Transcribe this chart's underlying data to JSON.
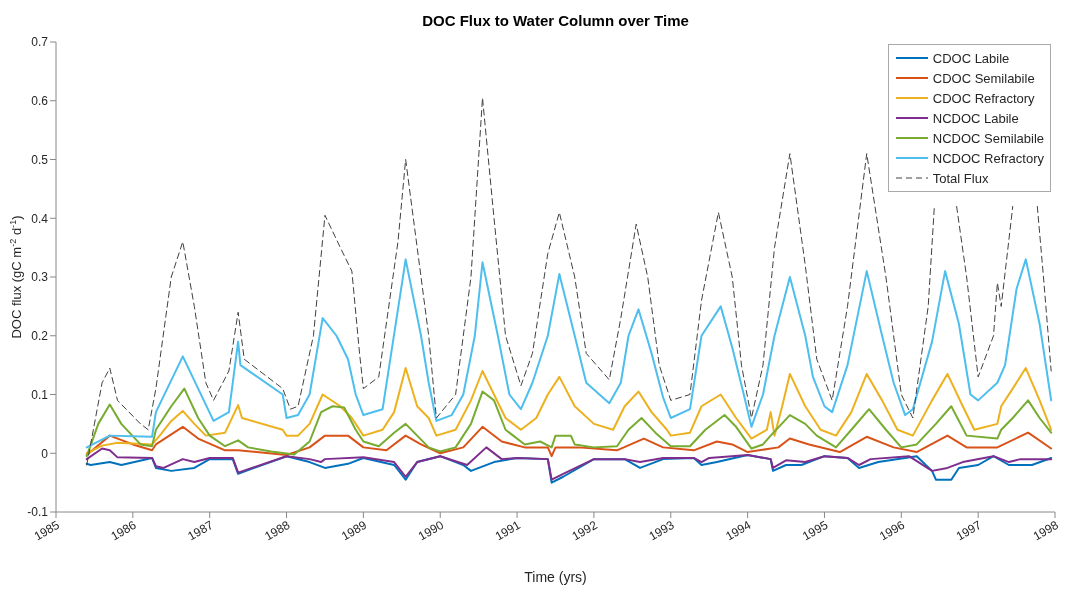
{
  "chart_data": {
    "type": "line",
    "title": "DOC Flux to Water Column over Time",
    "xlabel": "Time (yrs)",
    "ylabel": "DOC flux (gC m$^{-2}$ d$^{-1}$)",
    "xlim": [
      1985,
      1998
    ],
    "xticks": [
      1985,
      1986,
      1987,
      1988,
      1989,
      1990,
      1991,
      1992,
      1993,
      1994,
      1995,
      1996,
      1997,
      1998
    ],
    "ylim": [
      -0.1,
      0.7
    ],
    "yticks": [
      -0.1,
      0,
      0.1,
      0.2,
      0.3,
      0.4,
      0.5,
      0.6,
      0.7
    ],
    "legend": "top right",
    "line_style": "solid",
    "series": [
      {
        "name": "CDOC Labile",
        "color": "#0072bd",
        "x": [
          1985.4,
          1985.45,
          1985.7,
          1985.85,
          1986.25,
          1986.3,
          1986.5,
          1986.8,
          1987.0,
          1987.3,
          1987.37,
          1988.0,
          1988.3,
          1988.5,
          1988.8,
          1989.0,
          1989.4,
          1989.55,
          1989.7,
          1990.0,
          1990.3,
          1990.4,
          1990.7,
          1991.0,
          1991.4,
          1991.45,
          1991.6,
          1992.0,
          1992.4,
          1992.6,
          1992.9,
          1993.3,
          1993.4,
          1993.6,
          1994.0,
          1994.3,
          1994.33,
          1994.5,
          1994.7,
          1995.0,
          1995.3,
          1995.45,
          1995.7,
          1996.2,
          1996.4,
          1996.45,
          1996.65,
          1996.75,
          1997.0,
          1997.2,
          1997.4,
          1997.7,
          1997.95
        ],
        "values": [
          -0.018,
          -0.02,
          -0.015,
          -0.02,
          -0.008,
          -0.025,
          -0.03,
          -0.025,
          -0.01,
          -0.01,
          -0.035,
          -0.005,
          -0.015,
          -0.025,
          -0.018,
          -0.008,
          -0.02,
          -0.045,
          -0.015,
          -0.005,
          -0.02,
          -0.03,
          -0.015,
          -0.008,
          -0.01,
          -0.05,
          -0.04,
          -0.01,
          -0.01,
          -0.025,
          -0.01,
          -0.008,
          -0.02,
          -0.015,
          -0.003,
          -0.01,
          -0.03,
          -0.02,
          -0.02,
          -0.005,
          -0.008,
          -0.025,
          -0.015,
          -0.005,
          -0.03,
          -0.045,
          -0.045,
          -0.025,
          -0.02,
          -0.005,
          -0.02,
          -0.02,
          -0.008
        ]
      },
      {
        "name": "CDOC Semilabile",
        "color": "#d95319",
        "x": [
          1985.4,
          1985.7,
          1986.0,
          1986.25,
          1986.3,
          1986.65,
          1986.85,
          1987.2,
          1987.37,
          1988.0,
          1988.3,
          1988.5,
          1988.8,
          1989.0,
          1989.3,
          1989.55,
          1989.75,
          1990.0,
          1990.3,
          1990.55,
          1990.8,
          1991.1,
          1991.4,
          1991.45,
          1991.5,
          1991.8,
          1992.3,
          1992.65,
          1992.9,
          1993.3,
          1993.6,
          1993.8,
          1994.0,
          1994.4,
          1994.55,
          1994.8,
          1995.2,
          1995.55,
          1995.9,
          1996.2,
          1996.6,
          1996.85,
          1997.25,
          1997.65,
          1997.95
        ],
        "values": [
          -0.003,
          0.03,
          0.015,
          0.005,
          0.015,
          0.045,
          0.025,
          0.005,
          0.005,
          -0.003,
          0.01,
          0.03,
          0.03,
          0.01,
          0.005,
          0.03,
          0.015,
          0.0,
          0.01,
          0.045,
          0.02,
          0.01,
          0.01,
          -0.005,
          0.01,
          0.01,
          0.005,
          0.025,
          0.01,
          0.005,
          0.02,
          0.015,
          0.002,
          0.01,
          0.025,
          0.015,
          0.002,
          0.028,
          0.01,
          0.002,
          0.03,
          0.01,
          0.01,
          0.035,
          0.008
        ]
      },
      {
        "name": "CDOC Refractory",
        "color": "#edb120",
        "x": [
          1985.4,
          1985.6,
          1985.8,
          1986.25,
          1986.35,
          1986.5,
          1986.65,
          1986.8,
          1986.95,
          1987.2,
          1987.37,
          1987.42,
          1987.95,
          1988.0,
          1988.15,
          1988.3,
          1988.47,
          1988.7,
          1988.85,
          1989.0,
          1989.25,
          1989.4,
          1989.55,
          1989.7,
          1989.85,
          1989.95,
          1990.2,
          1990.4,
          1990.55,
          1990.7,
          1990.85,
          1991.05,
          1991.25,
          1991.4,
          1991.55,
          1991.75,
          1992.0,
          1992.25,
          1992.4,
          1992.58,
          1992.75,
          1992.95,
          1993.0,
          1993.25,
          1993.4,
          1993.65,
          1993.85,
          1994.05,
          1994.25,
          1994.3,
          1994.35,
          1994.45,
          1994.55,
          1994.75,
          1994.95,
          1995.15,
          1995.35,
          1995.55,
          1995.75,
          1995.95,
          1996.15,
          1996.4,
          1996.6,
          1996.8,
          1996.95,
          1997.25,
          1997.3,
          1997.45,
          1997.62,
          1997.8,
          1997.95
        ],
        "values": [
          0.0,
          0.013,
          0.018,
          0.015,
          0.03,
          0.055,
          0.072,
          0.05,
          0.03,
          0.035,
          0.082,
          0.06,
          0.04,
          0.03,
          0.03,
          0.05,
          0.1,
          0.08,
          0.06,
          0.03,
          0.04,
          0.07,
          0.145,
          0.08,
          0.06,
          0.03,
          0.04,
          0.09,
          0.14,
          0.1,
          0.06,
          0.04,
          0.06,
          0.1,
          0.13,
          0.08,
          0.05,
          0.04,
          0.08,
          0.105,
          0.07,
          0.04,
          0.03,
          0.035,
          0.08,
          0.1,
          0.06,
          0.025,
          0.04,
          0.07,
          0.03,
          0.08,
          0.135,
          0.08,
          0.04,
          0.03,
          0.07,
          0.135,
          0.09,
          0.04,
          0.03,
          0.09,
          0.135,
          0.08,
          0.04,
          0.05,
          0.08,
          0.11,
          0.145,
          0.09,
          0.04
        ]
      },
      {
        "name": "NCDOC Labile",
        "color": "#7e2f8e",
        "x": [
          1985.4,
          1985.6,
          1985.7,
          1985.8,
          1986.25,
          1986.3,
          1986.4,
          1986.65,
          1986.8,
          1987.0,
          1987.3,
          1987.37,
          1988.0,
          1988.3,
          1988.45,
          1988.5,
          1989.0,
          1989.4,
          1989.55,
          1989.7,
          1990.0,
          1990.35,
          1990.6,
          1990.8,
          1991.0,
          1991.4,
          1991.45,
          1991.6,
          1992.0,
          1992.4,
          1992.6,
          1992.9,
          1993.3,
          1993.4,
          1993.5,
          1994.0,
          1994.3,
          1994.33,
          1994.5,
          1994.75,
          1995.0,
          1995.3,
          1995.45,
          1995.6,
          1996.1,
          1996.4,
          1996.6,
          1996.8,
          1997.2,
          1997.4,
          1997.55,
          1997.95
        ],
        "values": [
          -0.01,
          0.008,
          0.005,
          -0.007,
          -0.008,
          -0.022,
          -0.025,
          -0.01,
          -0.015,
          -0.008,
          -0.008,
          -0.033,
          -0.005,
          -0.01,
          -0.015,
          -0.01,
          -0.007,
          -0.015,
          -0.04,
          -0.015,
          -0.005,
          -0.02,
          0.01,
          -0.01,
          -0.008,
          -0.01,
          -0.045,
          -0.035,
          -0.01,
          -0.01,
          -0.015,
          -0.008,
          -0.008,
          -0.015,
          -0.008,
          -0.003,
          -0.01,
          -0.025,
          -0.012,
          -0.015,
          -0.005,
          -0.008,
          -0.02,
          -0.01,
          -0.005,
          -0.03,
          -0.025,
          -0.015,
          -0.005,
          -0.015,
          -0.01,
          -0.01
        ]
      },
      {
        "name": "NCDOC Semilabile",
        "color": "#77ac30",
        "x": [
          1985.4,
          1985.55,
          1985.7,
          1985.85,
          1986.1,
          1986.25,
          1986.3,
          1986.5,
          1986.67,
          1986.85,
          1987.0,
          1987.2,
          1987.37,
          1987.5,
          1987.8,
          1988.1,
          1988.3,
          1988.45,
          1988.6,
          1988.75,
          1988.9,
          1989.0,
          1989.2,
          1989.4,
          1989.55,
          1989.7,
          1989.85,
          1990.0,
          1990.2,
          1990.4,
          1990.55,
          1990.7,
          1990.85,
          1991.1,
          1991.3,
          1991.45,
          1991.5,
          1991.7,
          1991.75,
          1992.0,
          1992.3,
          1992.45,
          1992.62,
          1992.8,
          1993.0,
          1993.25,
          1993.45,
          1993.7,
          1993.85,
          1994.05,
          1994.2,
          1994.3,
          1994.55,
          1994.75,
          1994.9,
          1995.15,
          1995.35,
          1995.58,
          1995.8,
          1996.0,
          1996.2,
          1996.45,
          1996.65,
          1996.85,
          1997.25,
          1997.3,
          1997.45,
          1997.65,
          1997.8,
          1997.95
        ],
        "values": [
          -0.005,
          0.05,
          0.083,
          0.05,
          0.015,
          0.012,
          0.04,
          0.08,
          0.11,
          0.06,
          0.03,
          0.012,
          0.022,
          0.01,
          0.003,
          -0.002,
          0.02,
          0.07,
          0.08,
          0.078,
          0.04,
          0.02,
          0.012,
          0.035,
          0.05,
          0.03,
          0.01,
          0.003,
          0.01,
          0.05,
          0.105,
          0.09,
          0.04,
          0.015,
          0.02,
          0.01,
          0.03,
          0.03,
          0.015,
          0.01,
          0.012,
          0.04,
          0.06,
          0.035,
          0.012,
          0.012,
          0.04,
          0.065,
          0.045,
          0.008,
          0.015,
          0.03,
          0.065,
          0.05,
          0.03,
          0.01,
          0.04,
          0.075,
          0.04,
          0.01,
          0.015,
          0.05,
          0.08,
          0.03,
          0.025,
          0.04,
          0.06,
          0.09,
          0.06,
          0.035
        ]
      },
      {
        "name": "NCDOC Refractory",
        "color": "#4dbeee",
        "x": [
          1985.4,
          1985.7,
          1986.25,
          1986.3,
          1986.65,
          1987.05,
          1987.25,
          1987.37,
          1987.4,
          1987.95,
          1988.0,
          1988.15,
          1988.3,
          1988.47,
          1988.65,
          1988.8,
          1988.9,
          1989.0,
          1989.25,
          1989.55,
          1989.75,
          1989.85,
          1989.95,
          1990.15,
          1990.3,
          1990.45,
          1990.55,
          1990.75,
          1990.9,
          1991.05,
          1991.2,
          1991.4,
          1991.55,
          1991.75,
          1991.9,
          1992.2,
          1992.35,
          1992.45,
          1992.58,
          1992.75,
          1992.9,
          1993.0,
          1993.25,
          1993.4,
          1993.65,
          1993.8,
          1993.95,
          1994.05,
          1994.2,
          1994.35,
          1994.55,
          1994.75,
          1994.85,
          1995.0,
          1995.1,
          1995.3,
          1995.55,
          1995.75,
          1995.9,
          1996.05,
          1996.15,
          1996.4,
          1996.57,
          1996.75,
          1996.9,
          1997.0,
          1997.25,
          1997.35,
          1997.5,
          1997.62,
          1997.8,
          1997.95
        ],
        "values": [
          0.01,
          0.03,
          0.028,
          0.07,
          0.165,
          0.055,
          0.07,
          0.19,
          0.15,
          0.1,
          0.06,
          0.065,
          0.1,
          0.23,
          0.2,
          0.16,
          0.1,
          0.065,
          0.075,
          0.33,
          0.2,
          0.12,
          0.055,
          0.065,
          0.1,
          0.2,
          0.325,
          0.2,
          0.1,
          0.075,
          0.12,
          0.2,
          0.305,
          0.2,
          0.12,
          0.085,
          0.12,
          0.2,
          0.245,
          0.17,
          0.095,
          0.06,
          0.075,
          0.2,
          0.25,
          0.18,
          0.1,
          0.045,
          0.1,
          0.2,
          0.3,
          0.2,
          0.13,
          0.08,
          0.07,
          0.15,
          0.31,
          0.2,
          0.12,
          0.065,
          0.075,
          0.19,
          0.31,
          0.22,
          0.1,
          0.09,
          0.12,
          0.15,
          0.28,
          0.33,
          0.22,
          0.09
        ]
      },
      {
        "name": "Total Flux",
        "color": "#404040",
        "line_style": "dashed",
        "x": [
          1985.4,
          1985.5,
          1985.6,
          1985.7,
          1985.8,
          1986.1,
          1986.2,
          1986.3,
          1986.5,
          1986.65,
          1986.8,
          1986.95,
          1987.05,
          1987.25,
          1987.37,
          1987.45,
          1987.75,
          1987.95,
          1988.05,
          1988.15,
          1988.35,
          1988.5,
          1988.7,
          1988.85,
          1988.95,
          1989.0,
          1989.2,
          1989.45,
          1989.55,
          1989.7,
          1989.85,
          1989.95,
          1990.2,
          1990.4,
          1990.55,
          1990.7,
          1990.85,
          1991.05,
          1991.2,
          1991.4,
          1991.55,
          1991.75,
          1991.9,
          1992.2,
          1992.35,
          1992.55,
          1992.7,
          1992.85,
          1993.0,
          1993.25,
          1993.4,
          1993.62,
          1993.8,
          1993.92,
          1994.05,
          1994.2,
          1994.35,
          1994.55,
          1994.75,
          1994.9,
          1995.1,
          1995.3,
          1995.55,
          1995.8,
          1996.0,
          1996.15,
          1996.35,
          1996.43,
          1996.55,
          1996.72,
          1996.85,
          1997.0,
          1997.2,
          1997.25,
          1997.3,
          1997.45,
          1997.6,
          1997.77,
          1997.85,
          1997.95
        ],
        "values": [
          -0.02,
          0.05,
          0.12,
          0.145,
          0.09,
          0.05,
          0.04,
          0.11,
          0.3,
          0.36,
          0.25,
          0.12,
          0.09,
          0.14,
          0.24,
          0.16,
          0.13,
          0.11,
          0.075,
          0.08,
          0.2,
          0.405,
          0.35,
          0.31,
          0.17,
          0.11,
          0.13,
          0.36,
          0.5,
          0.35,
          0.2,
          0.06,
          0.1,
          0.3,
          0.605,
          0.4,
          0.2,
          0.115,
          0.17,
          0.34,
          0.41,
          0.3,
          0.17,
          0.125,
          0.23,
          0.39,
          0.3,
          0.15,
          0.09,
          0.1,
          0.26,
          0.41,
          0.3,
          0.15,
          0.06,
          0.15,
          0.35,
          0.51,
          0.32,
          0.16,
          0.09,
          0.25,
          0.51,
          0.3,
          0.1,
          0.06,
          0.25,
          0.42,
          null,
          0.42,
          0.3,
          0.13,
          0.2,
          0.29,
          0.25,
          0.42,
          null,
          0.42,
          0.3,
          0.14
        ]
      }
    ]
  }
}
